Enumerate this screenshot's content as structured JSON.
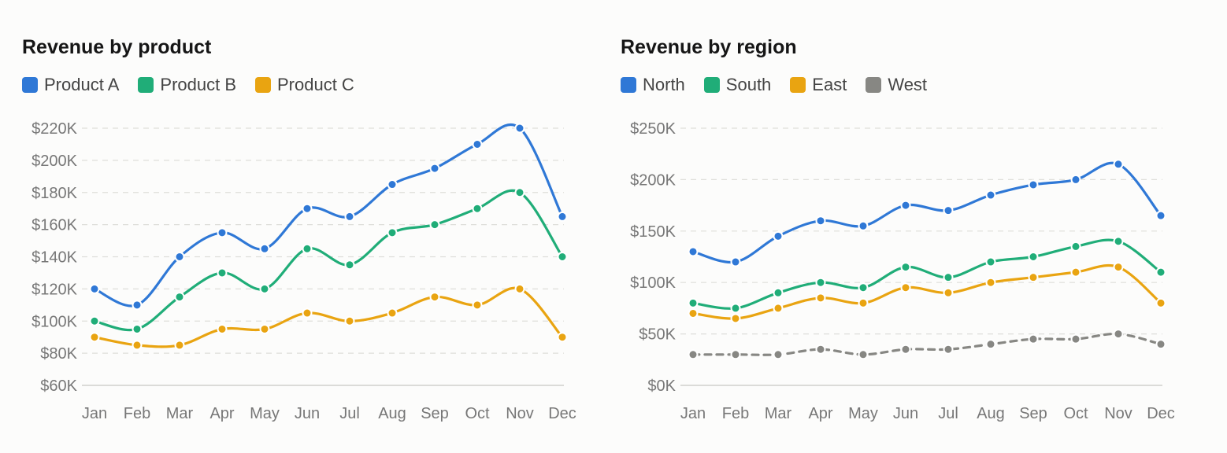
{
  "chart_data": [
    {
      "type": "line",
      "title": "Revenue by product",
      "categories": [
        "Jan",
        "Feb",
        "Mar",
        "Apr",
        "May",
        "Jun",
        "Jul",
        "Aug",
        "Sep",
        "Oct",
        "Nov",
        "Dec"
      ],
      "yticks": [
        "$60K",
        "$80K",
        "$100K",
        "$120K",
        "$140K",
        "$160K",
        "$180K",
        "$200K",
        "$220K"
      ],
      "ylim": [
        60000,
        220000
      ],
      "grid": true,
      "legend_position": "top-left",
      "series": [
        {
          "name": "Product A",
          "color": "#2f78d6",
          "dashed": false,
          "values": [
            120000,
            110000,
            140000,
            155000,
            145000,
            170000,
            165000,
            185000,
            195000,
            210000,
            220000,
            165000
          ]
        },
        {
          "name": "Product B",
          "color": "#20ad78",
          "dashed": false,
          "values": [
            100000,
            95000,
            115000,
            130000,
            120000,
            145000,
            135000,
            155000,
            160000,
            170000,
            180000,
            140000
          ]
        },
        {
          "name": "Product C",
          "color": "#e9a411",
          "dashed": false,
          "values": [
            90000,
            85000,
            85000,
            95000,
            95000,
            105000,
            100000,
            105000,
            115000,
            110000,
            120000,
            90000
          ]
        }
      ]
    },
    {
      "type": "line",
      "title": "Revenue by region",
      "categories": [
        "Jan",
        "Feb",
        "Mar",
        "Apr",
        "May",
        "Jun",
        "Jul",
        "Aug",
        "Sep",
        "Oct",
        "Nov",
        "Dec"
      ],
      "yticks": [
        "$0K",
        "$50K",
        "$100K",
        "$150K",
        "$200K",
        "$250K"
      ],
      "ylim": [
        0,
        250000
      ],
      "grid": true,
      "legend_position": "top-left",
      "series": [
        {
          "name": "North",
          "color": "#2f78d6",
          "dashed": false,
          "values": [
            130000,
            120000,
            145000,
            160000,
            155000,
            175000,
            170000,
            185000,
            195000,
            200000,
            215000,
            165000
          ]
        },
        {
          "name": "South",
          "color": "#20ad78",
          "dashed": false,
          "values": [
            80000,
            75000,
            90000,
            100000,
            95000,
            115000,
            105000,
            120000,
            125000,
            135000,
            140000,
            110000
          ]
        },
        {
          "name": "East",
          "color": "#e9a411",
          "dashed": false,
          "values": [
            70000,
            65000,
            75000,
            85000,
            80000,
            95000,
            90000,
            100000,
            105000,
            110000,
            115000,
            80000
          ]
        },
        {
          "name": "West",
          "color": "#878783",
          "dashed": true,
          "values": [
            30000,
            30000,
            30000,
            35000,
            30000,
            35000,
            35000,
            40000,
            45000,
            45000,
            50000,
            40000
          ]
        }
      ]
    }
  ]
}
